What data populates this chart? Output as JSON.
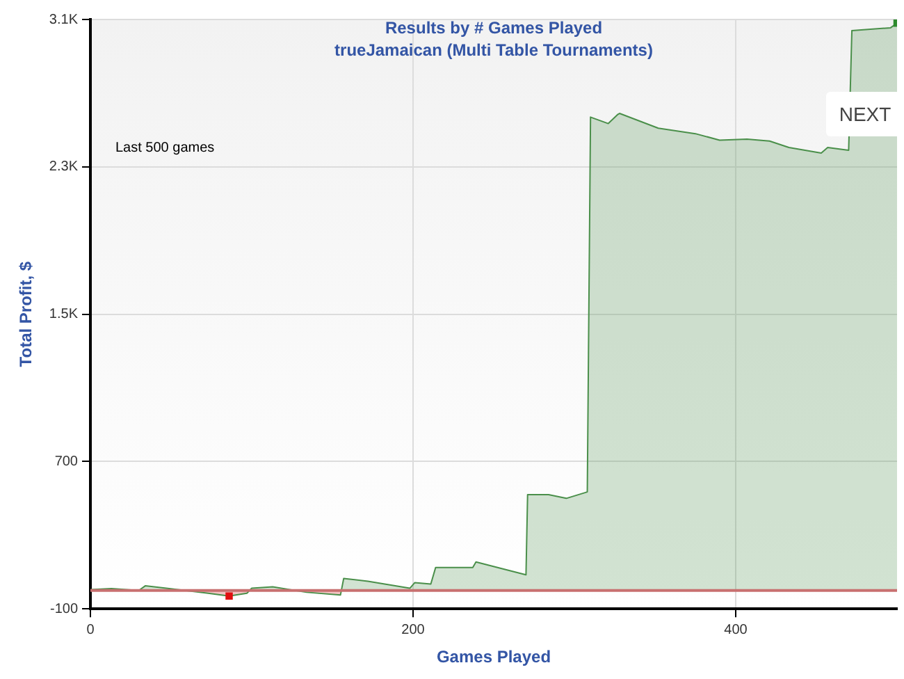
{
  "chart_data": {
    "type": "area",
    "title": "Results by # Games Played",
    "subtitle": "trueJamaican (Multi Table Tournaments)",
    "xlabel": "Games Played",
    "ylabel": "Total Profit, $",
    "annotations": [
      "Last 500 games",
      "NEXT"
    ],
    "xlim": [
      0,
      500
    ],
    "xticks": [
      0,
      200,
      400
    ],
    "ylim": [
      -100,
      3100
    ],
    "yticks": [
      -100,
      700,
      {
        "value": 1500,
        "label": "1.5K"
      },
      {
        "value": 2300,
        "label": "2.3K"
      },
      {
        "value": 3100,
        "label": "3.1K"
      }
    ],
    "grid": true,
    "legend": false,
    "ref_lines": [
      {
        "axis": "y",
        "value": 0,
        "color": "#c87070"
      }
    ],
    "series": [
      {
        "color": "#4a8f4a",
        "x": [
          0,
          13,
          30,
          34,
          47,
          73,
          86,
          97,
          100,
          113,
          134,
          155,
          157,
          172,
          198,
          201,
          211,
          214,
          237,
          239,
          270,
          271,
          284,
          295,
          308,
          310,
          321,
          327,
          328,
          352,
          375,
          390,
          407,
          421,
          433,
          453,
          457,
          470,
          472,
          496,
          500
        ],
        "values": [
          5,
          10,
          0,
          25,
          12,
          -15,
          -30,
          -15,
          12,
          20,
          -10,
          -25,
          65,
          50,
          12,
          42,
          35,
          125,
          125,
          155,
          85,
          520,
          520,
          500,
          535,
          2570,
          2535,
          2585,
          2590,
          2510,
          2480,
          2445,
          2450,
          2440,
          2405,
          2375,
          2405,
          2390,
          3040,
          3055,
          3080
        ]
      },
      {
        "type": "scatter",
        "x": [
          86,
          500
        ],
        "values": [
          -30,
          3080
        ],
        "colors": [
          "#e01010",
          "#2e8b2e"
        ]
      }
    ]
  }
}
